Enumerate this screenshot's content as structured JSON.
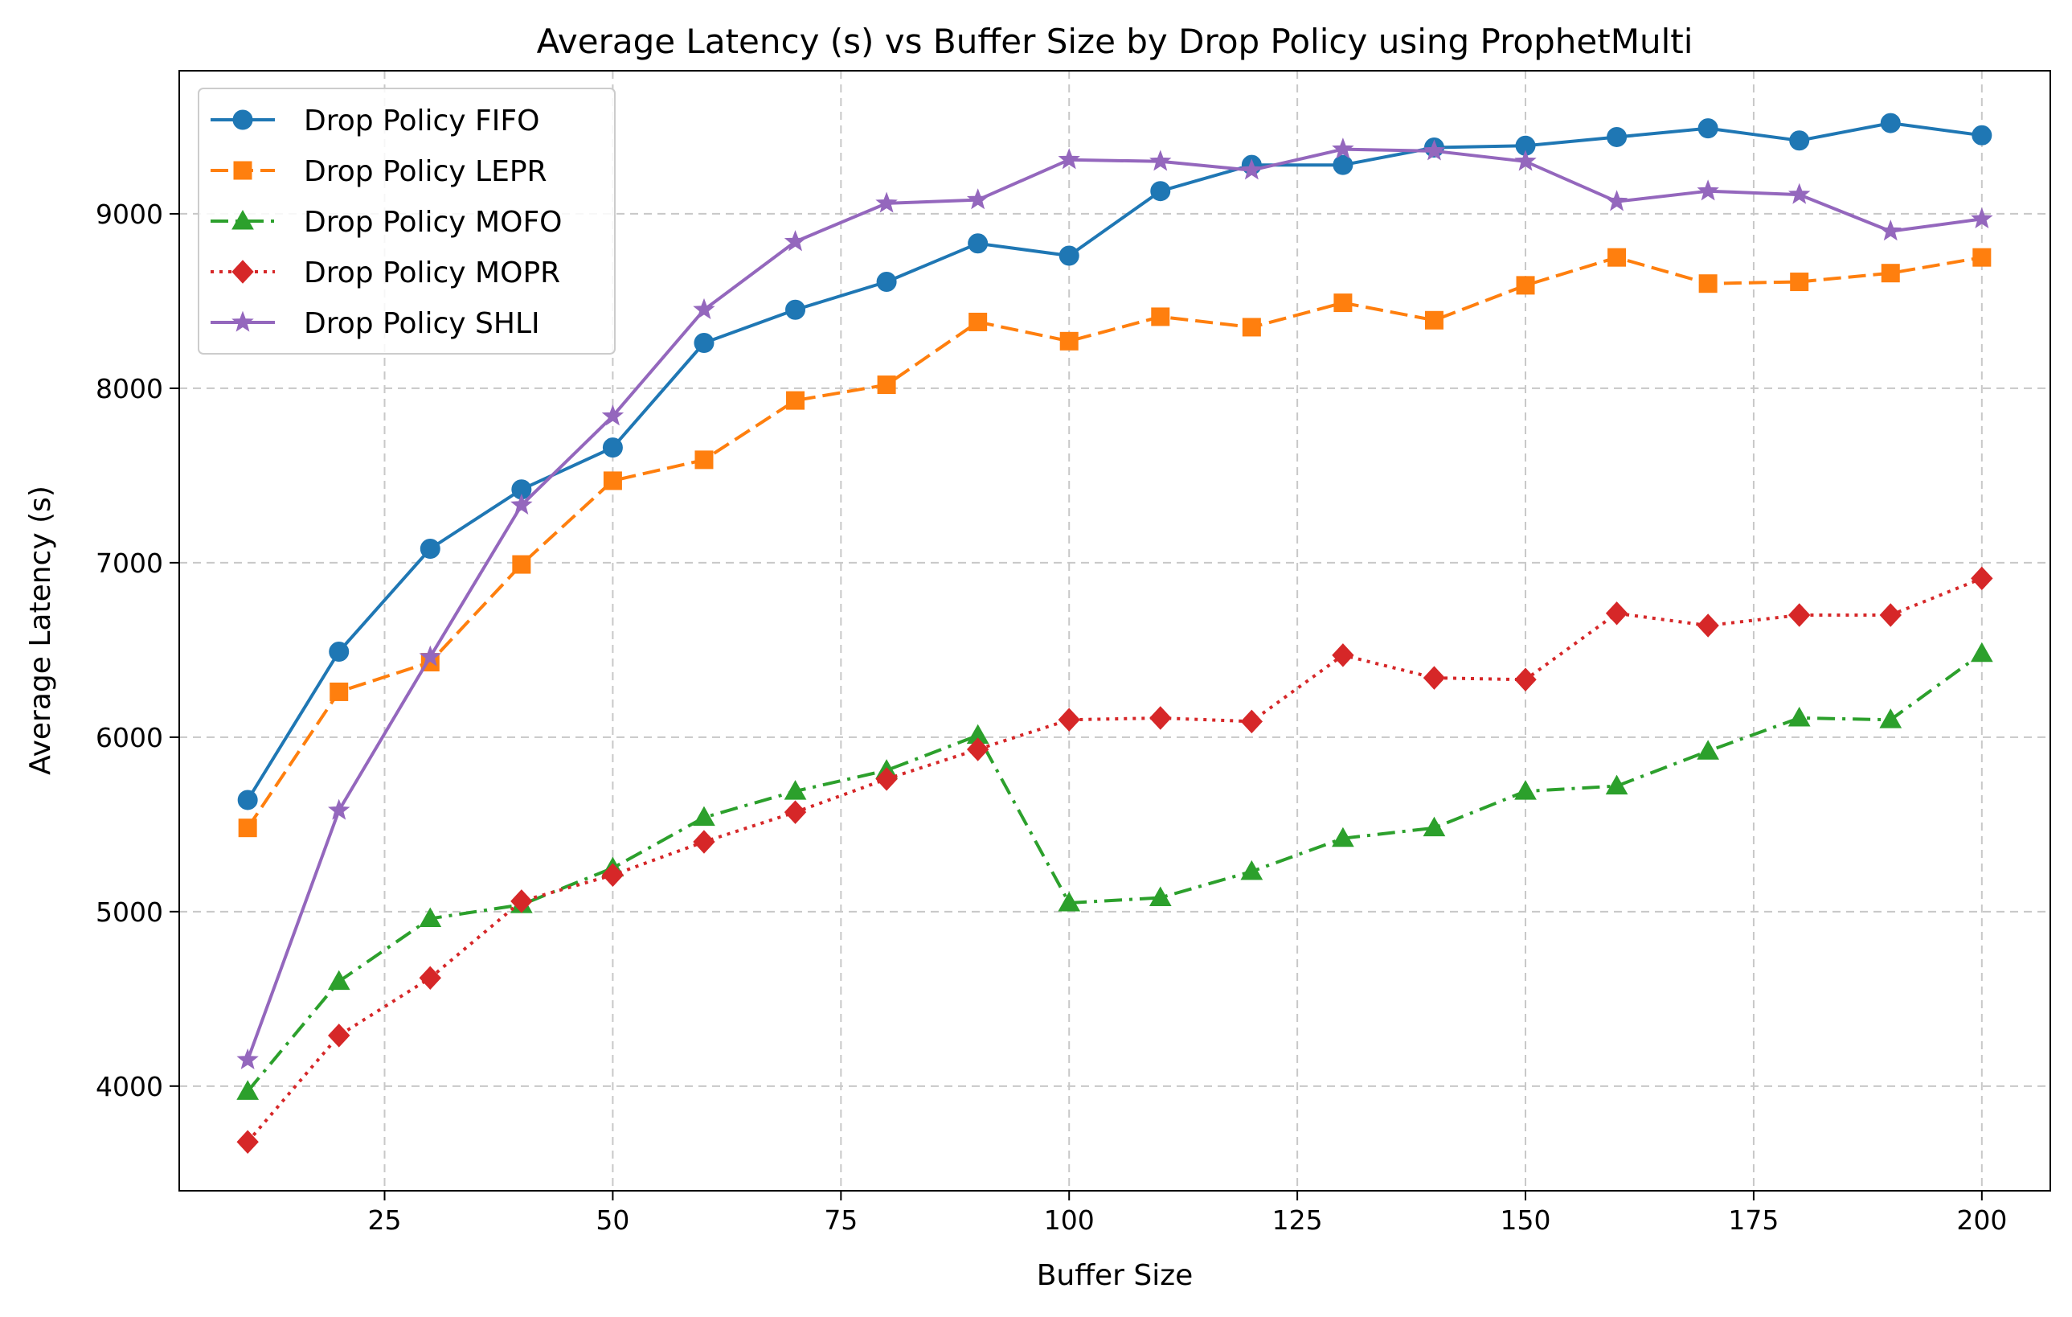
{
  "chart_data": {
    "type": "line",
    "title": "Average Latency (s) vs Buffer Size by Drop Policy using ProphetMulti",
    "xlabel": "Buffer Size",
    "ylabel": "Average Latency (s)",
    "xlim": [
      2.5,
      207.5
    ],
    "ylim": [
      3400,
      9820
    ],
    "xticks": [
      25,
      50,
      75,
      100,
      125,
      150,
      175,
      200
    ],
    "yticks": [
      4000,
      5000,
      6000,
      7000,
      8000,
      9000
    ],
    "grid": true,
    "legend_position": "top-left",
    "x": [
      10,
      20,
      30,
      40,
      50,
      60,
      70,
      80,
      90,
      100,
      110,
      120,
      130,
      140,
      150,
      160,
      170,
      180,
      190,
      200
    ],
    "series": [
      {
        "name": "Drop Policy FIFO",
        "color": "#1f77b4",
        "marker": "circle",
        "linestyle": "solid",
        "values": [
          5640,
          6490,
          7080,
          7420,
          7660,
          8260,
          8450,
          8610,
          8830,
          8760,
          9130,
          9280,
          9280,
          9380,
          9390,
          9440,
          9490,
          9420,
          9520,
          9450
        ]
      },
      {
        "name": "Drop Policy LEPR",
        "color": "#ff7f0e",
        "marker": "square",
        "linestyle": "dashed",
        "values": [
          5480,
          6260,
          6430,
          6990,
          7470,
          7590,
          7930,
          8020,
          8380,
          8270,
          8410,
          8350,
          8490,
          8390,
          8590,
          8750,
          8600,
          8610,
          8660,
          8750
        ]
      },
      {
        "name": "Drop Policy MOFO",
        "color": "#2ca02c",
        "marker": "triangle",
        "linestyle": "dashdot",
        "values": [
          3970,
          4600,
          4960,
          5040,
          5250,
          5540,
          5690,
          5810,
          6010,
          5050,
          5080,
          5230,
          5420,
          5480,
          5690,
          5720,
          5920,
          6110,
          6100,
          6480
        ]
      },
      {
        "name": "Drop Policy MOPR",
        "color": "#d62728",
        "marker": "diamond",
        "linestyle": "dotted",
        "values": [
          3680,
          4290,
          4620,
          5060,
          5210,
          5400,
          5570,
          5760,
          5930,
          6100,
          6110,
          6090,
          6470,
          6340,
          6330,
          6710,
          6640,
          6700,
          6700,
          6910
        ]
      },
      {
        "name": "Drop Policy SHLI",
        "color": "#9467bd",
        "marker": "star",
        "linestyle": "solid",
        "values": [
          4150,
          5580,
          6460,
          7330,
          7840,
          8450,
          8840,
          9060,
          9080,
          9310,
          9300,
          9250,
          9370,
          9360,
          9300,
          9070,
          9130,
          9110,
          8900,
          8970
        ]
      }
    ]
  }
}
